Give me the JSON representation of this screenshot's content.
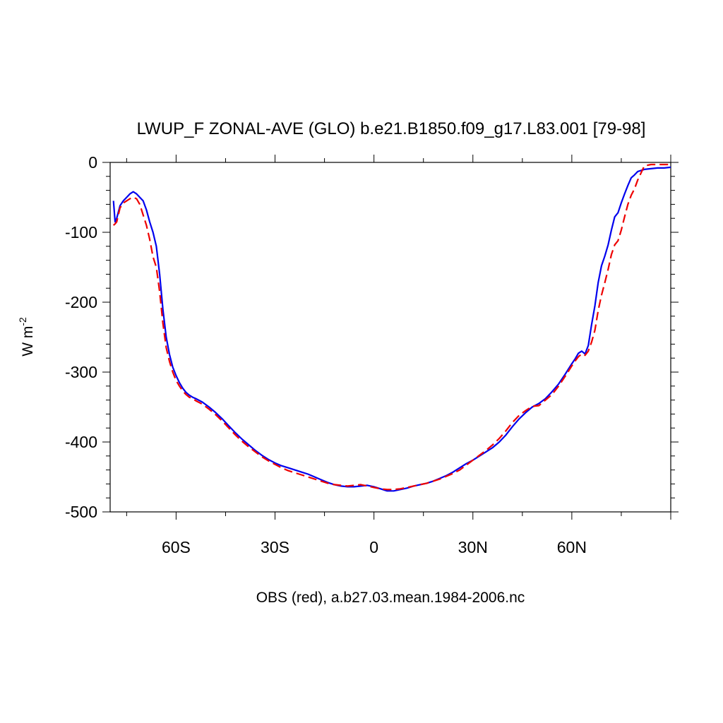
{
  "chart_data": {
    "type": "line",
    "title": "LWUP_F ZONAL-AVE (GLO) b.e21.B1850.f09_g17.L83.001 [79-98]",
    "xlabel": "OBS (red), a.b27.03.mean.1984-2006.nc",
    "ylabel_base": "W m",
    "ylabel_sup": "-2",
    "xlim": [
      -80,
      90
    ],
    "ylim": [
      -500,
      0
    ],
    "x_ticks": [
      {
        "value": -60,
        "label": "60S"
      },
      {
        "value": -30,
        "label": "30S"
      },
      {
        "value": 0,
        "label": "0"
      },
      {
        "value": 30,
        "label": "30N"
      },
      {
        "value": 60,
        "label": "60N"
      }
    ],
    "y_ticks": [
      {
        "value": 0,
        "label": "0"
      },
      {
        "value": -100,
        "label": "-100"
      },
      {
        "value": -200,
        "label": "-200"
      },
      {
        "value": -300,
        "label": "-300"
      },
      {
        "value": -400,
        "label": "-400"
      },
      {
        "value": -500,
        "label": "-500"
      }
    ],
    "series": [
      {
        "color": "#0000ee",
        "dash": "solid",
        "x": [
          -79,
          -78.5,
          -78,
          -77,
          -76,
          -75,
          -74,
          -73,
          -72,
          -71,
          -70,
          -69,
          -68,
          -67,
          -66,
          -65,
          -64,
          -63,
          -62,
          -61,
          -60,
          -59,
          -58,
          -57,
          -56,
          -55,
          -54,
          -52,
          -50,
          -48,
          -46,
          -44,
          -42,
          -40,
          -38,
          -36,
          -34,
          -32,
          -30,
          -28,
          -26,
          -24,
          -22,
          -20,
          -18,
          -16,
          -14,
          -12,
          -10,
          -8,
          -6,
          -4,
          -2,
          0,
          2,
          4,
          6,
          8,
          10,
          12,
          14,
          16,
          18,
          20,
          22,
          24,
          26,
          28,
          30,
          32,
          34,
          36,
          38,
          40,
          42,
          44,
          46,
          48,
          50,
          52,
          54,
          56,
          58,
          60,
          61,
          62,
          63,
          64,
          65,
          66,
          67,
          68,
          69,
          70,
          71,
          72,
          73,
          74,
          75,
          76,
          77,
          78,
          79,
          80,
          82,
          84,
          86,
          88,
          90
        ],
        "y": [
          -55,
          -85,
          -80,
          -62,
          -55,
          -50,
          -45,
          -42,
          -45,
          -50,
          -55,
          -68,
          -85,
          -100,
          -120,
          -160,
          -210,
          -250,
          -275,
          -293,
          -305,
          -315,
          -323,
          -329,
          -333,
          -336,
          -338,
          -343,
          -350,
          -358,
          -367,
          -377,
          -387,
          -396,
          -404,
          -412,
          -419,
          -425,
          -430,
          -434,
          -437,
          -440,
          -443,
          -446,
          -450,
          -454,
          -458,
          -461,
          -463,
          -464,
          -464,
          -463,
          -462,
          -464,
          -467,
          -470,
          -470,
          -468,
          -466,
          -463,
          -461,
          -459,
          -456,
          -452,
          -448,
          -443,
          -437,
          -431,
          -426,
          -420,
          -414,
          -408,
          -400,
          -390,
          -378,
          -367,
          -358,
          -350,
          -345,
          -338,
          -328,
          -317,
          -303,
          -288,
          -281,
          -273,
          -270,
          -274,
          -262,
          -232,
          -205,
          -172,
          -148,
          -134,
          -118,
          -97,
          -78,
          -72,
          -58,
          -45,
          -33,
          -22,
          -18,
          -13,
          -10,
          -9,
          -8,
          -8,
          -7
        ]
      },
      {
        "color": "#ee0000",
        "dash": "dashed",
        "x": [
          -79,
          -78.5,
          -78,
          -77,
          -76,
          -75,
          -74,
          -73,
          -72,
          -71,
          -70,
          -69,
          -68,
          -67,
          -66,
          -65,
          -64,
          -63,
          -62,
          -61,
          -60,
          -59,
          -58,
          -57,
          -56,
          -55,
          -54,
          -52,
          -50,
          -48,
          -46,
          -44,
          -42,
          -40,
          -38,
          -36,
          -34,
          -32,
          -30,
          -28,
          -26,
          -24,
          -22,
          -20,
          -18,
          -16,
          -14,
          -12,
          -10,
          -8,
          -6,
          -4,
          -2,
          0,
          2,
          4,
          6,
          8,
          10,
          12,
          14,
          16,
          18,
          20,
          22,
          24,
          26,
          28,
          30,
          32,
          34,
          36,
          38,
          40,
          42,
          44,
          46,
          48,
          50,
          52,
          54,
          56,
          58,
          60,
          61,
          62,
          63,
          64,
          65,
          66,
          67,
          68,
          69,
          70,
          71,
          72,
          73,
          74,
          75,
          76,
          77,
          78,
          79,
          80,
          82,
          84,
          86,
          88,
          90
        ],
        "y": [
          -90,
          -88,
          -85,
          -65,
          -58,
          -55,
          -52,
          -50,
          -52,
          -60,
          -75,
          -90,
          -110,
          -135,
          -150,
          -185,
          -230,
          -265,
          -285,
          -300,
          -312,
          -320,
          -327,
          -332,
          -336,
          -338,
          -341,
          -346,
          -353,
          -361,
          -370,
          -380,
          -390,
          -399,
          -407,
          -414,
          -421,
          -427,
          -432,
          -437,
          -441,
          -444,
          -447,
          -450,
          -453,
          -456,
          -459,
          -461,
          -462,
          -463,
          -462,
          -461,
          -463,
          -465,
          -467,
          -468,
          -468,
          -467,
          -465,
          -463,
          -461,
          -459,
          -456,
          -453,
          -449,
          -445,
          -440,
          -433,
          -426,
          -419,
          -412,
          -404,
          -395,
          -384,
          -372,
          -362,
          -355,
          -349,
          -348,
          -340,
          -332,
          -320,
          -306,
          -291,
          -284,
          -278,
          -274,
          -276,
          -270,
          -257,
          -240,
          -212,
          -190,
          -172,
          -153,
          -132,
          -118,
          -112,
          -97,
          -78,
          -60,
          -47,
          -38,
          -25,
          -5,
          -3,
          -3,
          -3,
          -3
        ]
      }
    ]
  }
}
